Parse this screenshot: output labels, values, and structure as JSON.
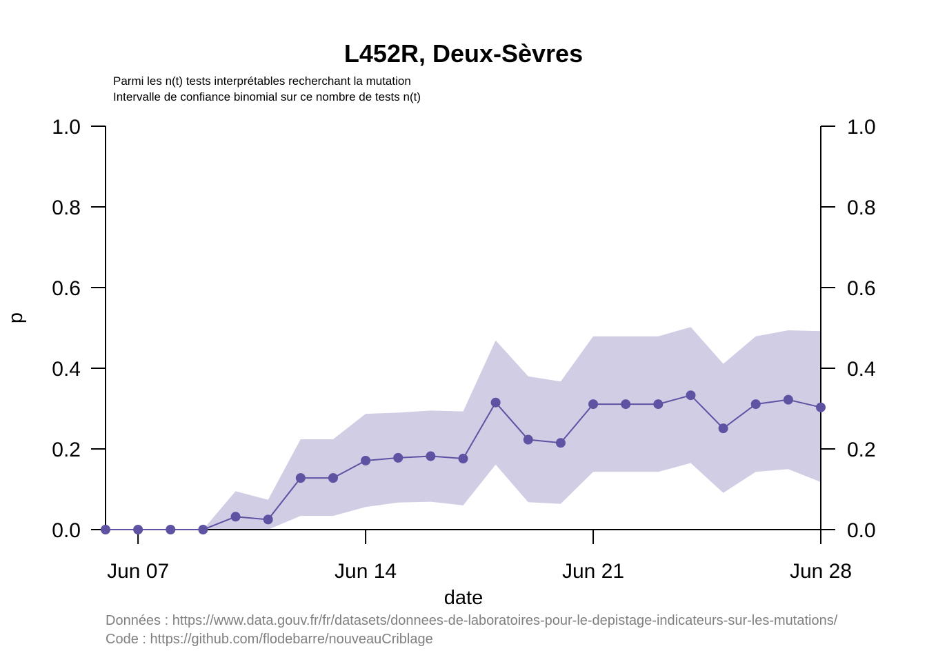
{
  "chart_data": {
    "type": "line",
    "title": "L452R, Deux-Sèvres",
    "subtitle_lines": [
      "Parmi les n(t) tests interprétables recherchant la mutation",
      "Intervalle de confiance binomial sur ce nombre de tests n(t)"
    ],
    "xlabel": "date",
    "ylabel": "p",
    "x_ticks": [
      {
        "date": "2021-06-07",
        "label": "Jun 07"
      },
      {
        "date": "2021-06-14",
        "label": "Jun 14"
      },
      {
        "date": "2021-06-21",
        "label": "Jun 21"
      },
      {
        "date": "2021-06-28",
        "label": "Jun 28"
      }
    ],
    "y_ticks": [
      "0.0",
      "0.2",
      "0.4",
      "0.6",
      "0.8",
      "1.0"
    ],
    "xlim": [
      "2021-06-06",
      "2021-06-28"
    ],
    "ylim": [
      0,
      1
    ],
    "grid": false,
    "series": [
      {
        "color": "#5e52a2",
        "band_color": "#d0cde5",
        "points": [
          {
            "date": "2021-06-06",
            "y": 0.0,
            "lo": 0.0,
            "hi": 0.0
          },
          {
            "date": "2021-06-07",
            "y": 0.0,
            "lo": 0.0,
            "hi": 0.0
          },
          {
            "date": "2021-06-08",
            "y": 0.0,
            "lo": 0.0,
            "hi": 0.0
          },
          {
            "date": "2021-06-09",
            "y": 0.0,
            "lo": 0.0,
            "hi": 0.0
          },
          {
            "date": "2021-06-10",
            "y": 0.032,
            "lo": 0.0,
            "hi": 0.095
          },
          {
            "date": "2021-06-11",
            "y": 0.025,
            "lo": 0.0,
            "hi": 0.074
          },
          {
            "date": "2021-06-12",
            "y": 0.128,
            "lo": 0.034,
            "hi": 0.224
          },
          {
            "date": "2021-06-13",
            "y": 0.128,
            "lo": 0.034,
            "hi": 0.224
          },
          {
            "date": "2021-06-14",
            "y": 0.171,
            "lo": 0.056,
            "hi": 0.287
          },
          {
            "date": "2021-06-15",
            "y": 0.178,
            "lo": 0.067,
            "hi": 0.29
          },
          {
            "date": "2021-06-16",
            "y": 0.182,
            "lo": 0.069,
            "hi": 0.295
          },
          {
            "date": "2021-06-17",
            "y": 0.176,
            "lo": 0.06,
            "hi": 0.293
          },
          {
            "date": "2021-06-18",
            "y": 0.315,
            "lo": 0.161,
            "hi": 0.469
          },
          {
            "date": "2021-06-19",
            "y": 0.223,
            "lo": 0.068,
            "hi": 0.38
          },
          {
            "date": "2021-06-20",
            "y": 0.215,
            "lo": 0.064,
            "hi": 0.367
          },
          {
            "date": "2021-06-21",
            "y": 0.311,
            "lo": 0.143,
            "hi": 0.479
          },
          {
            "date": "2021-06-22",
            "y": 0.311,
            "lo": 0.143,
            "hi": 0.479
          },
          {
            "date": "2021-06-23",
            "y": 0.311,
            "lo": 0.143,
            "hi": 0.479
          },
          {
            "date": "2021-06-24",
            "y": 0.333,
            "lo": 0.165,
            "hi": 0.502
          },
          {
            "date": "2021-06-25",
            "y": 0.251,
            "lo": 0.091,
            "hi": 0.411
          },
          {
            "date": "2021-06-26",
            "y": 0.311,
            "lo": 0.143,
            "hi": 0.479
          },
          {
            "date": "2021-06-27",
            "y": 0.322,
            "lo": 0.15,
            "hi": 0.494
          },
          {
            "date": "2021-06-28",
            "y": 0.303,
            "lo": 0.118,
            "hi": 0.492
          }
        ]
      }
    ],
    "footer_lines": [
      "Données : https://www.data.gouv.fr/fr/datasets/donnees-de-laboratoires-pour-le-depistage-indicateurs-sur-les-mutations/",
      "Code : https://github.com/flodebarre/nouveauCriblage"
    ],
    "footer_color": "#7f7f7f"
  }
}
